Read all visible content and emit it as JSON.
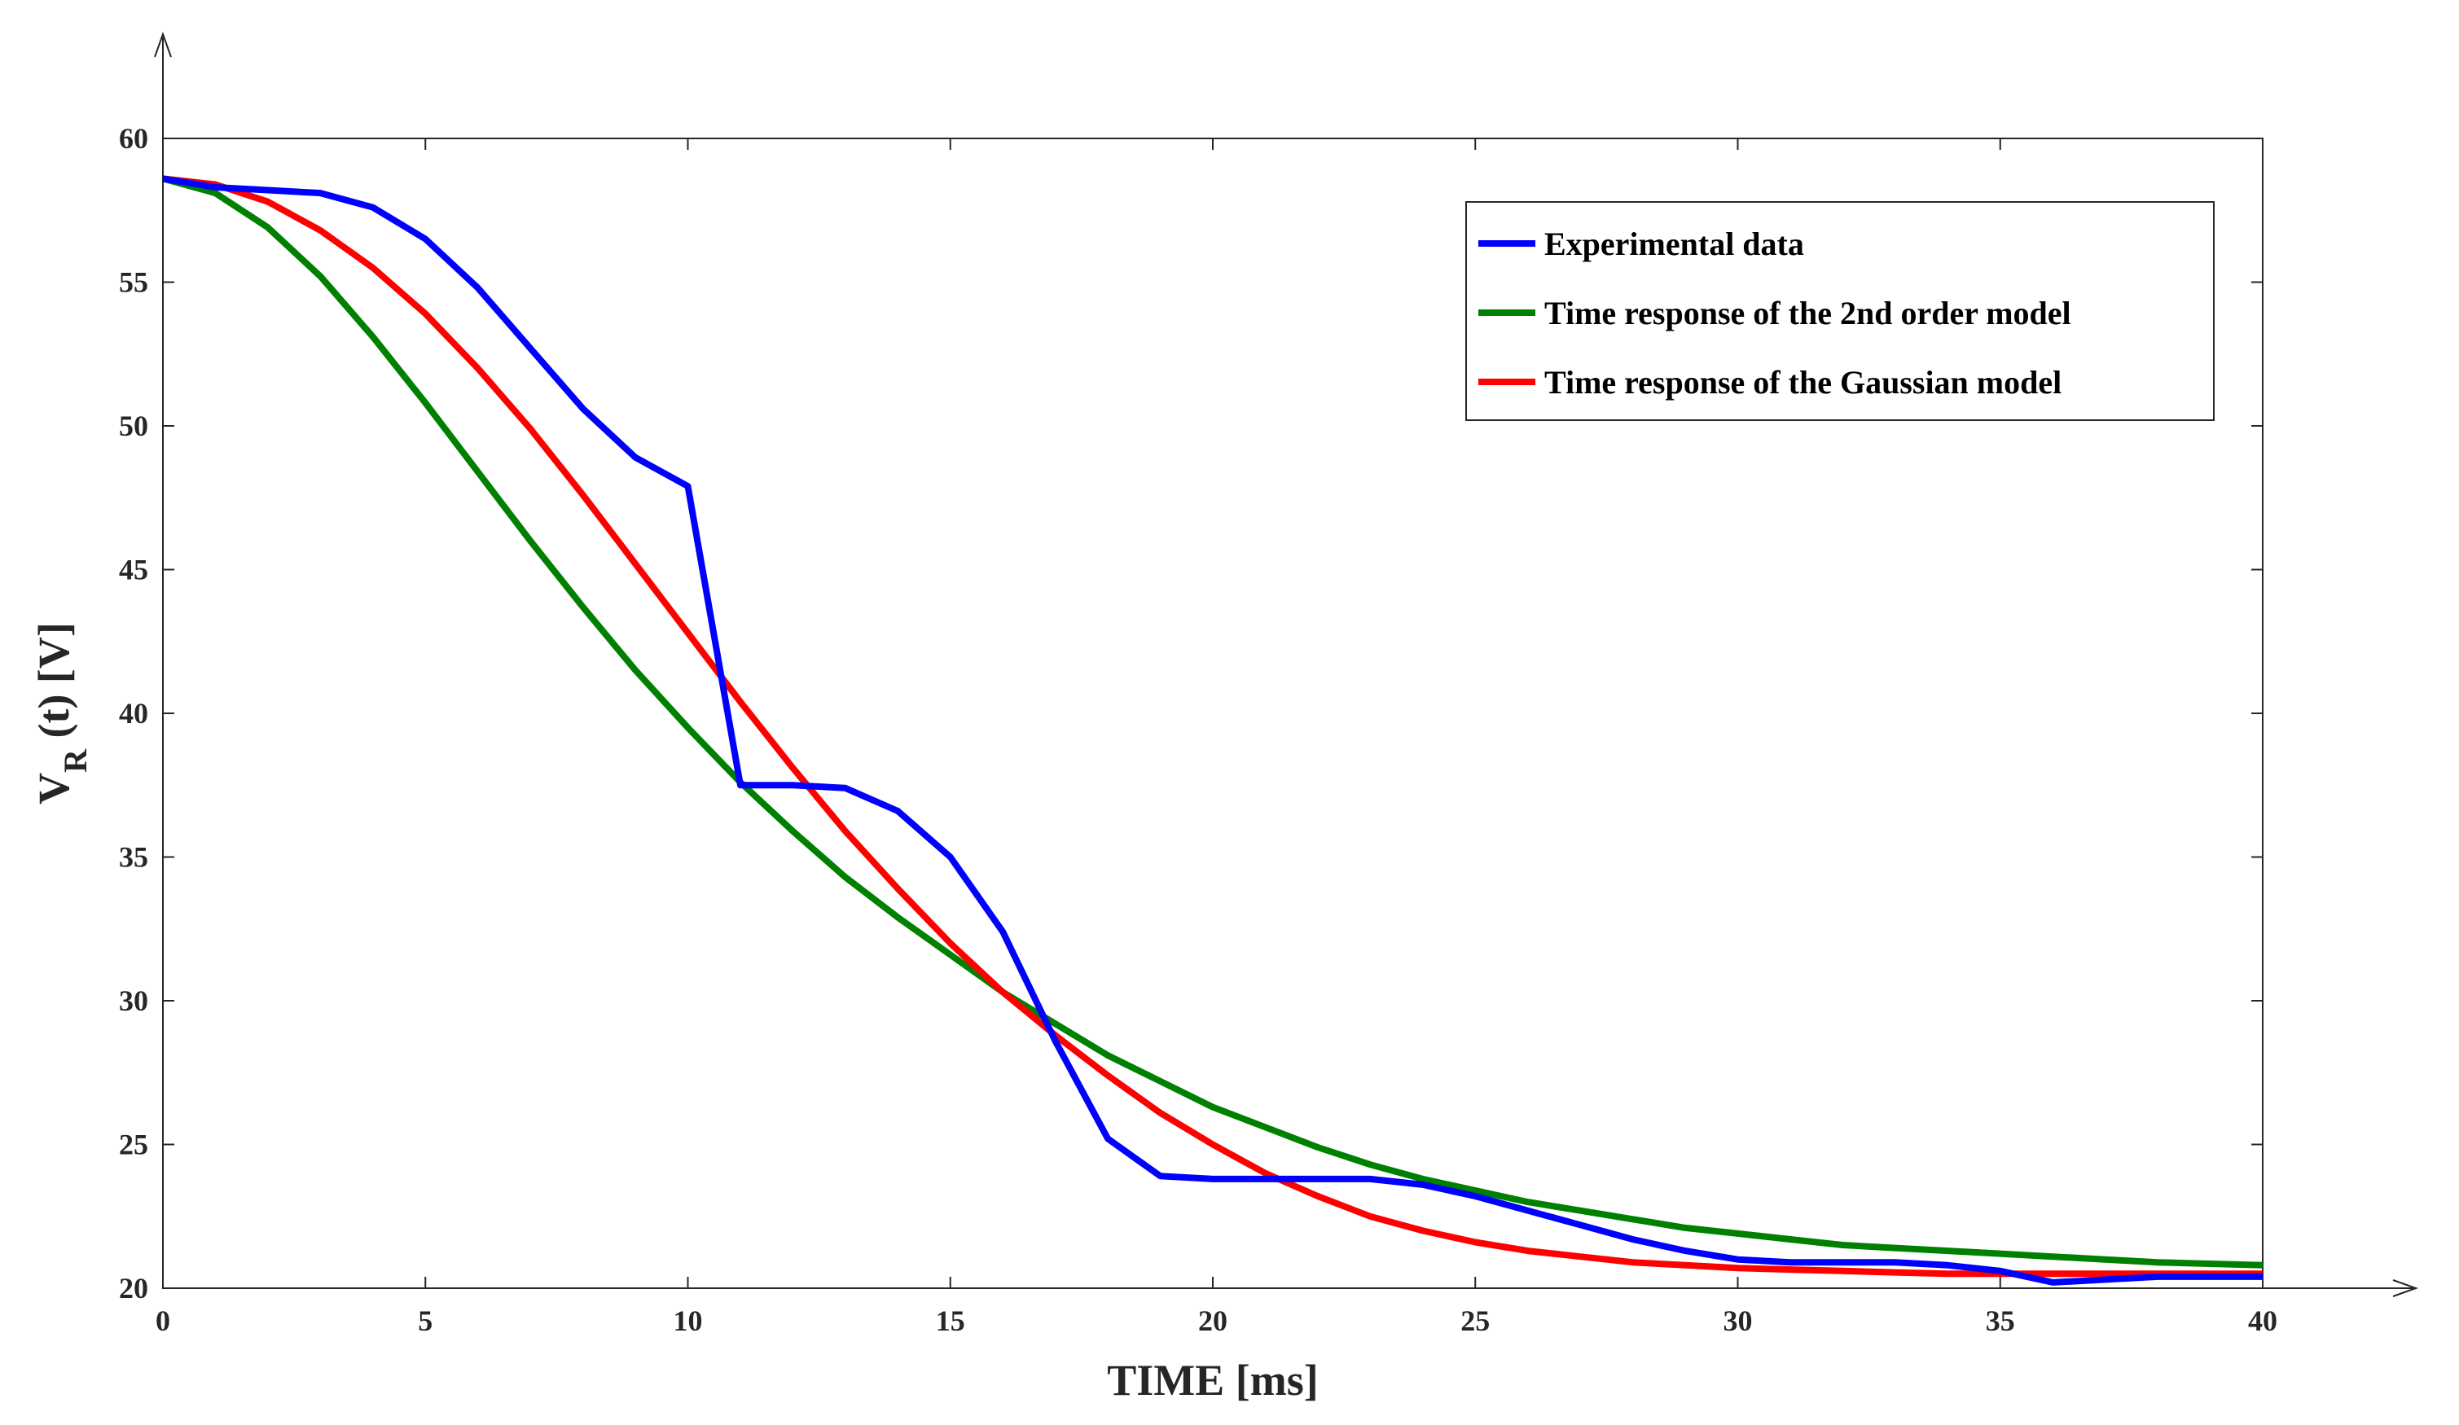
{
  "chart_data": {
    "type": "line",
    "title": "",
    "xlabel": "TIME [ms]",
    "ylabel": {
      "main": "V",
      "subscript": "R",
      "suffix": " (t) [V]"
    },
    "xlim": [
      0,
      40
    ],
    "ylim": [
      20,
      60
    ],
    "xticks": [
      0,
      5,
      10,
      15,
      20,
      25,
      30,
      35,
      40
    ],
    "yticks": [
      20,
      25,
      30,
      35,
      40,
      45,
      50,
      55,
      60
    ],
    "xtick_labels": [
      "0",
      "5",
      "10",
      "15",
      "20",
      "25",
      "30",
      "35",
      "40"
    ],
    "ytick_labels": [
      "20",
      "25",
      "30",
      "35",
      "40",
      "45",
      "50",
      "55",
      "60"
    ],
    "grid": false,
    "legend_position": "top-right",
    "series": [
      {
        "name": "Experimental data",
        "color": "#0000ff",
        "x": [
          0,
          1,
          2,
          3,
          4,
          5,
          6,
          7,
          8,
          9,
          10,
          11,
          12,
          13,
          14,
          15,
          16,
          17,
          18,
          19,
          20,
          21,
          22,
          23,
          24,
          25,
          26,
          27,
          28,
          29,
          30,
          31,
          32,
          33,
          34,
          35,
          36,
          37,
          38,
          39,
          40
        ],
        "y": [
          58.6,
          58.3,
          58.2,
          58.1,
          57.6,
          56.5,
          54.8,
          52.7,
          50.6,
          48.9,
          47.9,
          37.5,
          37.5,
          37.4,
          36.6,
          35.0,
          32.4,
          28.6,
          25.2,
          23.9,
          23.8,
          23.8,
          23.8,
          23.8,
          23.6,
          23.2,
          22.7,
          22.2,
          21.7,
          21.3,
          21.0,
          20.9,
          20.9,
          20.9,
          20.8,
          20.6,
          20.2,
          20.3,
          20.4,
          20.4,
          20.4
        ]
      },
      {
        "name": "Time response of the 2nd order model",
        "color": "#008000",
        "x": [
          0,
          1,
          2,
          3,
          4,
          5,
          6,
          7,
          8,
          9,
          10,
          11,
          12,
          13,
          14,
          15,
          16,
          17,
          18,
          19,
          20,
          21,
          22,
          23,
          24,
          25,
          26,
          27,
          28,
          29,
          30,
          31,
          32,
          33,
          34,
          35,
          36,
          37,
          38,
          39,
          40
        ],
        "y": [
          58.6,
          58.1,
          56.9,
          55.2,
          53.1,
          50.8,
          48.4,
          46.0,
          43.7,
          41.5,
          39.5,
          37.6,
          35.9,
          34.3,
          32.9,
          31.6,
          30.3,
          29.2,
          28.1,
          27.2,
          26.3,
          25.6,
          24.9,
          24.3,
          23.8,
          23.4,
          23.0,
          22.7,
          22.4,
          22.1,
          21.9,
          21.7,
          21.5,
          21.4,
          21.3,
          21.2,
          21.1,
          21.0,
          20.9,
          20.85,
          20.8
        ]
      },
      {
        "name": "Time response of the Gaussian model",
        "color": "#ff0000",
        "x": [
          0,
          1,
          2,
          3,
          4,
          5,
          6,
          7,
          8,
          9,
          10,
          11,
          12,
          13,
          14,
          15,
          16,
          17,
          18,
          19,
          20,
          21,
          22,
          23,
          24,
          25,
          26,
          27,
          28,
          29,
          30,
          31,
          32,
          33,
          34,
          35,
          36,
          37,
          38,
          39,
          40
        ],
        "y": [
          58.6,
          58.4,
          57.8,
          56.8,
          55.5,
          53.9,
          52.0,
          49.9,
          47.6,
          45.2,
          42.8,
          40.4,
          38.1,
          35.9,
          33.9,
          32.0,
          30.3,
          28.8,
          27.4,
          26.1,
          25.0,
          24.0,
          23.2,
          22.5,
          22.0,
          21.6,
          21.3,
          21.1,
          20.9,
          20.8,
          20.7,
          20.65,
          20.6,
          20.55,
          20.5,
          20.5,
          20.5,
          20.5,
          20.5,
          20.5,
          20.5
        ]
      }
    ]
  }
}
